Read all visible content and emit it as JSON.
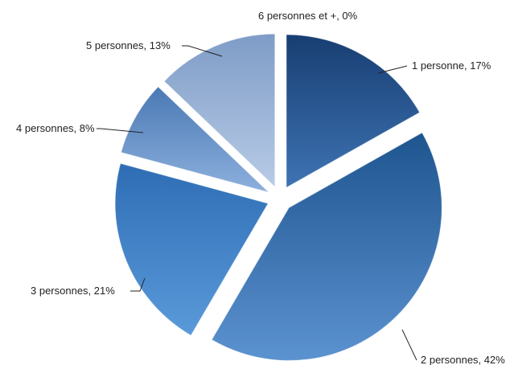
{
  "chart_data": {
    "type": "pie",
    "slices": [
      {
        "label": "1 personne",
        "value": 17,
        "text": "1 personne, 17%",
        "color_light": "#3E73B3",
        "color_dark": "#183E72"
      },
      {
        "label": "2 personnes",
        "value": 42,
        "text": "2 personnes, 42%",
        "color_light": "#5B92D0",
        "color_dark": "#1E558F"
      },
      {
        "label": "3 personnes",
        "value": 21,
        "text": "3 personnes, 21%",
        "color_light": "#5A9ADA",
        "color_dark": "#2E6DB4"
      },
      {
        "label": "4 personnes",
        "value": 8,
        "text": "4 personnes, 8%",
        "color_light": "#8DB0DD",
        "color_dark": "#4A79B4"
      },
      {
        "label": "5 personnes",
        "value": 13,
        "text": "5 personnes, 13%",
        "color_light": "#B8CBE6",
        "color_dark": "#7E9CC7"
      },
      {
        "label": "6 personnes et +",
        "value": 0,
        "text": "6 personnes et +, 0%",
        "color_light": "#D9E4F3",
        "color_dark": "#A8BEDF"
      }
    ]
  }
}
